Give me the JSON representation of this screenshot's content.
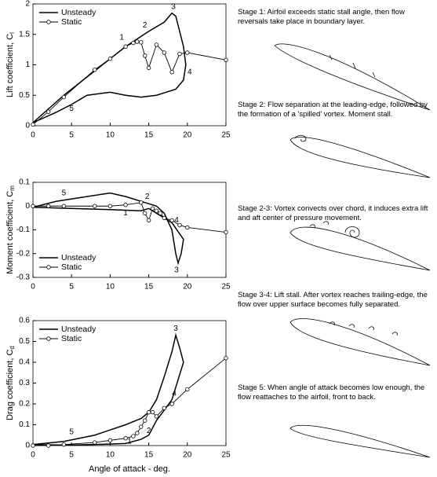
{
  "chart_data": [
    {
      "type": "line",
      "ylabel": "Lift coefficient, C",
      "ylabel_sub": "l",
      "xlim": [
        0,
        25
      ],
      "xticks": [
        0,
        5,
        10,
        15,
        20,
        25
      ],
      "ylim": [
        0,
        2
      ],
      "yticks": [
        0,
        0.5,
        1,
        1.5,
        2
      ],
      "legend": "upper left",
      "series": [
        {
          "name": "Unsteady",
          "color": "#000000",
          "marker": null,
          "x": [
            0,
            4,
            8,
            12,
            15,
            17,
            18,
            18.5,
            19.5,
            19.8,
            19.5,
            18.5,
            16,
            14,
            12,
            10,
            7,
            5,
            3,
            0
          ],
          "values": [
            0.05,
            0.5,
            0.9,
            1.3,
            1.55,
            1.7,
            1.85,
            1.8,
            1.3,
            1.0,
            0.75,
            0.6,
            0.5,
            0.47,
            0.5,
            0.55,
            0.5,
            0.35,
            0.22,
            0.05
          ]
        },
        {
          "name": "Static",
          "color": "#000000",
          "marker": "circle",
          "x": [
            0,
            2,
            4,
            8,
            10,
            12,
            13,
            13.5,
            14,
            14.5,
            15,
            16,
            17,
            18,
            19,
            20,
            25
          ],
          "values": [
            0.02,
            0.23,
            0.47,
            0.92,
            1.1,
            1.3,
            1.36,
            1.38,
            1.37,
            1.15,
            0.95,
            1.33,
            1.2,
            0.88,
            1.18,
            1.2,
            1.08
          ]
        }
      ],
      "annotations": [
        {
          "text": "1",
          "x": 11.5,
          "y": 1.45
        },
        {
          "text": "2",
          "x": 14.5,
          "y": 1.65
        },
        {
          "text": "3",
          "x": 18.2,
          "y": 1.95
        },
        {
          "text": "4",
          "x": 20.3,
          "y": 0.88
        },
        {
          "text": "5",
          "x": 5,
          "y": 0.28
        }
      ]
    },
    {
      "type": "line",
      "ylabel": "Moment coefficient, C",
      "ylabel_sub": "m",
      "xlim": [
        0,
        25
      ],
      "xticks": [
        0,
        5,
        10,
        15,
        20,
        25
      ],
      "ylim": [
        -0.3,
        0.1
      ],
      "yticks": [
        -0.3,
        -0.2,
        -0.1,
        0,
        0.1
      ],
      "legend": "lower left",
      "series": [
        {
          "name": "Unsteady",
          "color": "#000000",
          "marker": null,
          "x": [
            0,
            3,
            6,
            10,
            12,
            14,
            16,
            17,
            18,
            18.5,
            18.8,
            19.2,
            19.5,
            18,
            16,
            15,
            14,
            10,
            5,
            0
          ],
          "values": [
            -0.005,
            0.02,
            0.035,
            0.055,
            0.04,
            0.02,
            0,
            -0.03,
            -0.1,
            -0.2,
            -0.24,
            -0.2,
            -0.14,
            -0.07,
            -0.03,
            -0.01,
            -0.02,
            -0.015,
            -0.01,
            -0.005
          ]
        },
        {
          "name": "Static",
          "color": "#000000",
          "marker": "circle",
          "x": [
            0,
            2,
            4,
            8,
            10,
            12,
            14,
            14.5,
            15,
            15.5,
            16,
            16.5,
            17,
            18,
            19,
            20,
            25
          ],
          "values": [
            0,
            0,
            0,
            0,
            0,
            0.005,
            0.015,
            -0.03,
            -0.06,
            -0.01,
            -0.02,
            -0.03,
            -0.05,
            -0.06,
            -0.08,
            -0.09,
            -0.11
          ]
        }
      ],
      "annotations": [
        {
          "text": "1",
          "x": 12,
          "y": -0.03
        },
        {
          "text": "2",
          "x": 14.8,
          "y": 0.04
        },
        {
          "text": "3",
          "x": 18.6,
          "y": -0.27
        },
        {
          "text": "4",
          "x": 18.6,
          "y": -0.06
        },
        {
          "text": "5",
          "x": 4,
          "y": 0.055
        }
      ]
    },
    {
      "type": "line",
      "ylabel": "Drag coefficient, C",
      "ylabel_sub": "d",
      "xlabel": "Angle of attack - deg.",
      "xlim": [
        0,
        25
      ],
      "xticks": [
        0,
        5,
        10,
        15,
        20,
        25
      ],
      "ylim": [
        0,
        0.6
      ],
      "yticks": [
        0,
        0.1,
        0.2,
        0.3,
        0.4,
        0.5,
        0.6
      ],
      "legend": "upper left",
      "series": [
        {
          "name": "Unsteady",
          "color": "#000000",
          "marker": null,
          "x": [
            0,
            4,
            8,
            12,
            14,
            15,
            16,
            17,
            18,
            18.5,
            19,
            19.5,
            18,
            16,
            15,
            14,
            12,
            8,
            4,
            0
          ],
          "values": [
            0.005,
            0.02,
            0.05,
            0.1,
            0.13,
            0.16,
            0.22,
            0.33,
            0.45,
            0.53,
            0.47,
            0.4,
            0.22,
            0.12,
            0.05,
            0.03,
            0.01,
            0.005,
            0.002,
            0.005
          ]
        },
        {
          "name": "Static",
          "color": "#000000",
          "marker": "circle",
          "x": [
            0,
            2,
            4,
            8,
            10,
            12,
            13,
            13.5,
            14,
            14.5,
            15,
            15.5,
            16,
            17,
            18,
            20,
            25
          ],
          "values": [
            0,
            0,
            0.005,
            0.015,
            0.025,
            0.035,
            0.045,
            0.06,
            0.09,
            0.12,
            0.16,
            0.16,
            0.14,
            0.18,
            0.2,
            0.27,
            0.42
          ]
        }
      ],
      "annotations": [
        {
          "text": "1",
          "x": 12.5,
          "y": 0.02
        },
        {
          "text": "2",
          "x": 15,
          "y": 0.07
        },
        {
          "text": "3",
          "x": 18.5,
          "y": 0.56
        },
        {
          "text": "4",
          "x": 18.3,
          "y": 0.25
        },
        {
          "text": "5",
          "x": 5,
          "y": 0.065
        }
      ]
    }
  ],
  "stages": [
    "Stage 1:  Airfoil exceeds static stall angle, then flow reversals take place in boundary layer.",
    "Stage 2: Flow separation at the leading-edge, followed by the formation of a 'spilled' vortex. Moment stall.",
    "Stage 2-3: Vortex convects over chord, it induces extra lift and aft center of pressure movement.",
    "Stage 3-4: Lift stall. After vortex reaches trailing-edge, the flow over upper surface becomes fully separated.",
    "Stage 5: When angle of attack becomes low enough, the flow reattaches to the airfoil, front to back."
  ]
}
